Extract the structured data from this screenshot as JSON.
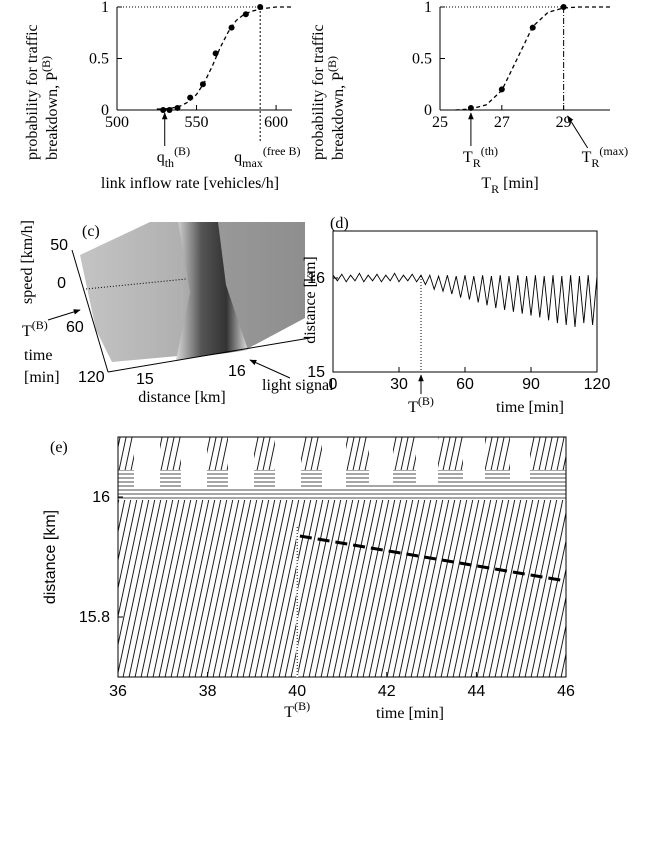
{
  "chart_data": [
    {
      "type": "scatter",
      "ylabel": [
        [
          {
            "t": "probability for traffic"
          }
        ],
        [
          {
            "t": "breakdown,  P"
          },
          {
            "t": "(B)",
            "sup": true
          }
        ]
      ],
      "xlabel": [
        {
          "t": "link inflow rate [vehicles/h]"
        }
      ],
      "xlim": [
        500,
        610
      ],
      "xticks": [
        500,
        550,
        600
      ],
      "ylim": [
        0,
        1
      ],
      "yticks": [
        0,
        0.5,
        1
      ],
      "series": [
        {
          "x": [
            529,
            533,
            538,
            546,
            554,
            562,
            572,
            581,
            590
          ],
          "values": [
            0,
            0,
            0.02,
            0.12,
            0.25,
            0.55,
            0.8,
            0.93,
            1
          ],
          "color": "#000000",
          "style": "dots"
        },
        {
          "x": [
            525,
            530,
            535,
            540,
            545,
            550,
            555,
            560,
            565,
            570,
            575,
            580,
            585,
            590,
            595,
            600,
            605,
            610
          ],
          "values": [
            0.01,
            0.01,
            0.02,
            0.04,
            0.08,
            0.15,
            0.27,
            0.43,
            0.61,
            0.76,
            0.87,
            0.93,
            0.96,
            0.98,
            0.99,
            1,
            1,
            1
          ],
          "color": "#000000",
          "style": "dashed"
        }
      ],
      "annotations": [
        {
          "x": 530,
          "text": [
            {
              "t": "q"
            },
            {
              "t": "th",
              "sub": true
            },
            {
              "t": "(B)",
              "sup": true
            }
          ]
        },
        {
          "x": 590,
          "text": [
            {
              "t": "q"
            },
            {
              "t": "max",
              "sub": true
            },
            {
              "t": "(free B)",
              "sup": true
            }
          ],
          "line": "dashed"
        }
      ]
    },
    {
      "type": "scatter",
      "ylabel": [
        [
          {
            "t": "probability for traffic"
          }
        ],
        [
          {
            "t": "breakdown,  P"
          },
          {
            "t": "(B)",
            "sup": true
          }
        ]
      ],
      "xlabel": [
        {
          "t": "T"
        },
        {
          "t": "R",
          "sub": true
        },
        {
          "t": " [min]"
        }
      ],
      "xlim": [
        25,
        30.5
      ],
      "xticks": [
        25,
        27,
        29
      ],
      "ylim": [
        0,
        1
      ],
      "yticks": [
        0,
        0.5,
        1
      ],
      "series": [
        {
          "x": [
            26,
            27,
            28,
            29
          ],
          "values": [
            0.02,
            0.2,
            0.8,
            1
          ],
          "color": "#000000",
          "style": "dots"
        },
        {
          "x": [
            25.5,
            26,
            26.5,
            27,
            27.5,
            28,
            28.5,
            29,
            29.5,
            30,
            30.5
          ],
          "values": [
            0,
            0.01,
            0.05,
            0.19,
            0.5,
            0.81,
            0.95,
            0.99,
            1,
            1,
            1
          ],
          "color": "#000000",
          "style": "dashed"
        }
      ],
      "annotations": [
        {
          "x": 26,
          "text": [
            {
              "t": "T"
            },
            {
              "t": "R",
              "sub": true
            },
            {
              "t": "(th)",
              "sup": true
            }
          ]
        },
        {
          "x": 29,
          "text": [
            {
              "t": "T"
            },
            {
              "t": "R",
              "sub": true
            },
            {
              "t": "(max)",
              "sup": true
            }
          ],
          "line": "dashdot"
        }
      ]
    },
    {
      "type": "surface",
      "panel": "(c)",
      "zlabel": "speed [km/h]",
      "zticks": [
        50,
        0
      ],
      "ylabel": [
        "time",
        "[min]"
      ],
      "yticks": [
        60,
        120
      ],
      "xlabel": "distance [km]",
      "xticks": [
        15,
        16
      ],
      "annotations": [
        [
          {
            "t": "T"
          },
          {
            "t": "(B)",
            "sup": true
          }
        ],
        [
          {
            "t": "light signal"
          }
        ]
      ]
    },
    {
      "type": "line",
      "panel": "(d)",
      "ylabel": [
        {
          "t": "distance [km]"
        }
      ],
      "xlabel": [
        {
          "t": "time [min]"
        }
      ],
      "xlim": [
        0,
        120
      ],
      "xticks": [
        0,
        30,
        60,
        90,
        120
      ],
      "ylim": [
        15,
        16.5
      ],
      "yticks": [
        15,
        16
      ],
      "series": [
        {
          "x": [
            0,
            2,
            4,
            6,
            8,
            10,
            12,
            14,
            16,
            18,
            20,
            22,
            24,
            26,
            28,
            30,
            32,
            34,
            36,
            38,
            40,
            42,
            44,
            46,
            48,
            50,
            52,
            54,
            56,
            58,
            60,
            62,
            64,
            66,
            68,
            70,
            72,
            74,
            76,
            78,
            80,
            82,
            84,
            86,
            88,
            90,
            92,
            94,
            96,
            98,
            100,
            102,
            104,
            106,
            108,
            110,
            112,
            114,
            116,
            118,
            120
          ],
          "values": [
            16.03,
            15.97,
            16.04,
            15.96,
            16.03,
            15.97,
            16.05,
            15.96,
            16.03,
            15.97,
            16.04,
            15.96,
            16.03,
            15.97,
            16.05,
            15.96,
            16.03,
            15.97,
            16.04,
            15.96,
            16.03,
            15.93,
            16.03,
            15.88,
            16.02,
            15.86,
            16.03,
            15.83,
            16.02,
            15.79,
            16.03,
            15.77,
            16.02,
            15.74,
            16.03,
            15.71,
            16.02,
            15.68,
            16.03,
            15.66,
            16.02,
            15.64,
            16.03,
            15.62,
            16.02,
            15.6,
            16.03,
            15.58,
            16.02,
            15.55,
            16.03,
            15.52,
            16.02,
            15.5,
            16.03,
            15.48,
            16.02,
            15.52,
            16.03,
            15.5,
            16.02
          ],
          "color": "#000000"
        }
      ],
      "annotations": [
        {
          "x": 40,
          "text": [
            {
              "t": "T"
            },
            {
              "t": "(B)",
              "sup": true
            }
          ]
        }
      ]
    },
    {
      "type": "trajectories",
      "panel": "(e)",
      "ylabel": [
        {
          "t": "distance [km]"
        }
      ],
      "xlabel": [
        {
          "t": "time [min]"
        }
      ],
      "xlim": [
        36,
        46
      ],
      "xticks": [
        36,
        38,
        40,
        42,
        44,
        46
      ],
      "ylim": [
        15.7,
        16.1
      ],
      "yticks": [
        15.8,
        16
      ],
      "series": [
        {
          "x": [
            40.06,
            46
          ],
          "values": [
            15.935,
            15.86
          ],
          "color": "#000000",
          "style": "dashed"
        }
      ],
      "annotations": [
        {
          "x": 40,
          "text": [
            {
              "t": "T"
            },
            {
              "t": "(B)",
              "sup": true
            }
          ]
        }
      ]
    }
  ]
}
